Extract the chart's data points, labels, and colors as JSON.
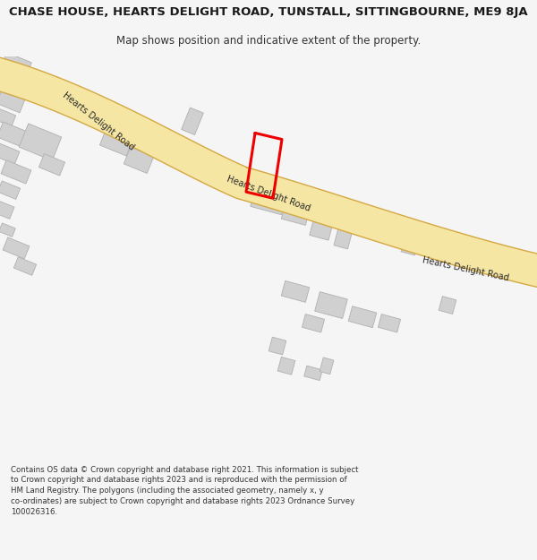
{
  "title_line1": "CHASE HOUSE, HEARTS DELIGHT ROAD, TUNSTALL, SITTINGBOURNE, ME9 8JA",
  "title_line2": "Map shows position and indicative extent of the property.",
  "footer": "Contains OS data © Crown copyright and database right 2021. This information is subject to Crown copyright and database rights 2023 and is reproduced with the permission of HM Land Registry. The polygons (including the associated geometry, namely x, y co-ordinates) are subject to Crown copyright and database rights 2023 Ordnance Survey 100026316.",
  "bg_color": "#f5f5f5",
  "map_bg": "#ffffff",
  "road_fill": "#f5e6a3",
  "road_edge": "#d4a843",
  "building_fill": "#d0d0d0",
  "building_edge": "#b0b0b0",
  "highlight_color": "#ee0000",
  "road_label_upper": "Hearts Delight Road",
  "road_label_mid": "Hearts Delight Road",
  "road_label_lower": "Hearts Delight Road",
  "title_fontsize": 9.5,
  "subtitle_fontsize": 8.5,
  "footer_fontsize": 6.2
}
